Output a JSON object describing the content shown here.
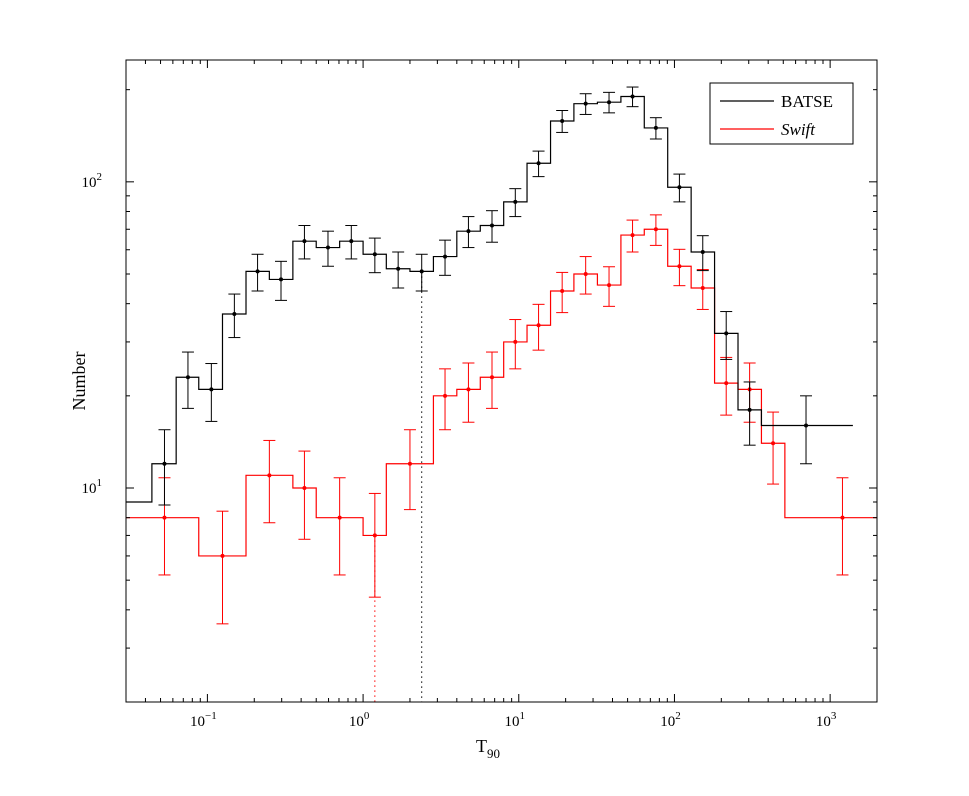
{
  "chart_data": {
    "type": "step-histogram",
    "title": "",
    "xlabel": "T",
    "xlabel_subscript": "90",
    "ylabel": "Number",
    "xscale": "log",
    "yscale": "log",
    "xlim": [
      0.03,
      2000
    ],
    "ylim": [
      2,
      250
    ],
    "grid": false,
    "legend_position": "top-right",
    "x_tick_labels": [
      {
        "value": 0.1,
        "base": "10",
        "exp": "−1"
      },
      {
        "value": 1,
        "base": "10",
        "exp": "0"
      },
      {
        "value": 10,
        "base": "10",
        "exp": "1"
      },
      {
        "value": 100,
        "base": "10",
        "exp": "2"
      },
      {
        "value": 1000,
        "base": "10",
        "exp": "3"
      }
    ],
    "y_tick_labels": [
      {
        "value": 10,
        "base": "10",
        "exp": "1"
      },
      {
        "value": 100,
        "base": "10",
        "exp": "2"
      }
    ],
    "series": [
      {
        "name": "BATSE",
        "color": "#000000",
        "edges": [
          0.03,
          0.044,
          0.063,
          0.088,
          0.125,
          0.177,
          0.25,
          0.354,
          0.5,
          0.707,
          1.0,
          1.41,
          2.0,
          2.83,
          4.0,
          5.66,
          8.0,
          11.3,
          16.0,
          22.6,
          32.0,
          45.3,
          64.0,
          90.5,
          128,
          181,
          256,
          362,
          1400
        ],
        "values": [
          9,
          12,
          23,
          21,
          37,
          51,
          48,
          64,
          61,
          64,
          58,
          52,
          51,
          57,
          69,
          72,
          86,
          115,
          158,
          180,
          182,
          190,
          150,
          96,
          59,
          32,
          18,
          16
        ],
        "points": [
          {
            "x": 0.053,
            "y": 12,
            "err": [
              8.8,
              15.5
            ]
          },
          {
            "x": 0.075,
            "y": 23,
            "err": [
              18.2,
              27.8
            ]
          },
          {
            "x": 0.106,
            "y": 21,
            "err": [
              16.5,
              25.5
            ]
          },
          {
            "x": 0.149,
            "y": 37,
            "err": [
              31,
              43
            ]
          },
          {
            "x": 0.21,
            "y": 51,
            "err": [
              44,
              58
            ]
          },
          {
            "x": 0.297,
            "y": 48,
            "err": [
              41,
              55
            ]
          },
          {
            "x": 0.42,
            "y": 64,
            "err": [
              56,
              72
            ]
          },
          {
            "x": 0.595,
            "y": 61,
            "err": [
              53,
              69
            ]
          },
          {
            "x": 0.84,
            "y": 64,
            "err": [
              56,
              72
            ]
          },
          {
            "x": 1.19,
            "y": 58,
            "err": [
              50.5,
              65.5
            ]
          },
          {
            "x": 1.68,
            "y": 52,
            "err": [
              45,
              59
            ]
          },
          {
            "x": 2.38,
            "y": 51,
            "err": [
              44,
              58
            ]
          },
          {
            "x": 3.36,
            "y": 57,
            "err": [
              49.5,
              64.5
            ]
          },
          {
            "x": 4.75,
            "y": 69,
            "err": [
              61,
              77
            ]
          },
          {
            "x": 6.73,
            "y": 72,
            "err": [
              63.5,
              80.5
            ]
          },
          {
            "x": 9.5,
            "y": 86,
            "err": [
              77,
              95
            ]
          },
          {
            "x": 13.4,
            "y": 115,
            "err": [
              104,
              126
            ]
          },
          {
            "x": 19.0,
            "y": 158,
            "err": [
              145,
              171
            ]
          },
          {
            "x": 26.9,
            "y": 180,
            "err": [
              166,
              194
            ]
          },
          {
            "x": 38.0,
            "y": 182,
            "err": [
              168,
              196
            ]
          },
          {
            "x": 53.8,
            "y": 190,
            "err": [
              176,
              204
            ]
          },
          {
            "x": 76.0,
            "y": 150,
            "err": [
              138,
              162
            ]
          },
          {
            "x": 107.6,
            "y": 96,
            "err": [
              86,
              106
            ]
          },
          {
            "x": 152,
            "y": 59,
            "err": [
              51.3,
              66.7
            ]
          },
          {
            "x": 215,
            "y": 32,
            "err": [
              26.3,
              37.7
            ]
          },
          {
            "x": 304,
            "y": 18,
            "err": [
              13.8,
              22.2
            ]
          },
          {
            "x": 700,
            "y": 16,
            "err": [
              12,
              20
            ]
          }
        ]
      },
      {
        "name": "Swift",
        "color": "#ff0000",
        "edges": [
          0.03,
          0.088,
          0.177,
          0.354,
          0.5,
          0.707,
          1.0,
          1.41,
          2.0,
          2.83,
          4.0,
          5.66,
          8.0,
          11.3,
          16.0,
          22.6,
          32.0,
          45.3,
          64.0,
          90.5,
          128,
          181,
          256,
          362,
          512,
          2000
        ],
        "values": [
          8,
          6,
          11,
          10,
          8,
          8,
          7,
          12,
          12,
          20,
          21,
          23,
          30,
          34,
          44,
          50,
          46,
          67,
          70,
          53,
          45,
          22,
          21,
          14,
          8
        ],
        "points": [
          {
            "x": 0.053,
            "y": 8,
            "err": [
              5.2,
              10.8
            ]
          },
          {
            "x": 0.125,
            "y": 6,
            "err": [
              3.6,
              8.4
            ]
          },
          {
            "x": 0.25,
            "y": 11,
            "err": [
              7.7,
              14.3
            ]
          },
          {
            "x": 0.42,
            "y": 10,
            "err": [
              6.8,
              13.2
            ]
          },
          {
            "x": 0.707,
            "y": 8,
            "err": [
              5.2,
              10.8
            ]
          },
          {
            "x": 1.19,
            "y": 7,
            "err": [
              4.4,
              9.6
            ]
          },
          {
            "x": 2.0,
            "y": 12,
            "err": [
              8.5,
              15.5
            ]
          },
          {
            "x": 3.36,
            "y": 20,
            "err": [
              15.5,
              24.5
            ]
          },
          {
            "x": 4.75,
            "y": 21,
            "err": [
              16.4,
              25.6
            ]
          },
          {
            "x": 6.73,
            "y": 23,
            "err": [
              18.2,
              27.8
            ]
          },
          {
            "x": 9.5,
            "y": 30,
            "err": [
              24.5,
              35.5
            ]
          },
          {
            "x": 13.4,
            "y": 34,
            "err": [
              28.2,
              39.8
            ]
          },
          {
            "x": 19.0,
            "y": 44,
            "err": [
              37.4,
              50.6
            ]
          },
          {
            "x": 26.9,
            "y": 50,
            "err": [
              43,
              57
            ]
          },
          {
            "x": 38.0,
            "y": 46,
            "err": [
              39.2,
              52.8
            ]
          },
          {
            "x": 53.8,
            "y": 67,
            "err": [
              59,
              75
            ]
          },
          {
            "x": 76.0,
            "y": 70,
            "err": [
              62,
              78
            ]
          },
          {
            "x": 107.6,
            "y": 53,
            "err": [
              45.8,
              60.2
            ]
          },
          {
            "x": 152,
            "y": 45,
            "err": [
              38.3,
              51.7
            ]
          },
          {
            "x": 215,
            "y": 22,
            "err": [
              17.3,
              26.7
            ]
          },
          {
            "x": 304,
            "y": 21,
            "err": [
              16.4,
              25.6
            ]
          },
          {
            "x": 430,
            "y": 14,
            "err": [
              10.3,
              17.7
            ]
          },
          {
            "x": 1200,
            "y": 8,
            "err": [
              5.2,
              10.8
            ]
          }
        ]
      }
    ],
    "vertical_markers": [
      {
        "series": "BATSE",
        "x": 2.38,
        "y_top": 51,
        "style": "dotted"
      },
      {
        "series": "Swift",
        "x": 1.19,
        "y_top": 7,
        "style": "dotted"
      }
    ]
  }
}
